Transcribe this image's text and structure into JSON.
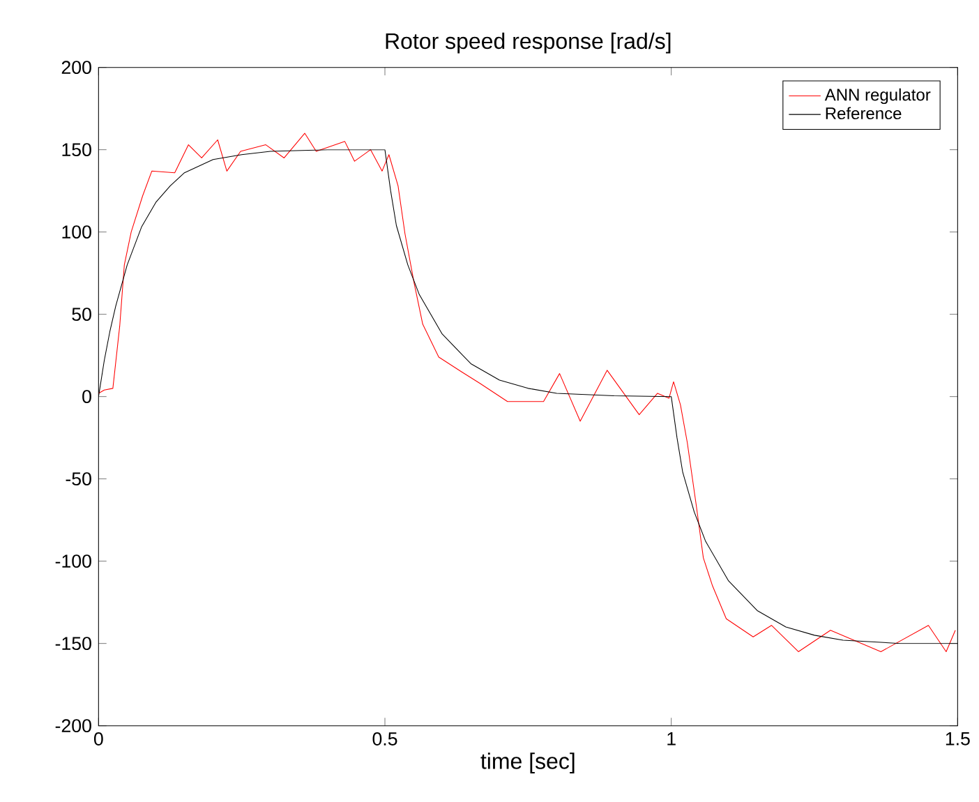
{
  "chart_data": {
    "type": "line",
    "title": "Rotor speed response [rad/s]",
    "xlabel": "time [sec]",
    "xlim": [
      0,
      1.5
    ],
    "xticks": [
      0,
      0.5,
      1,
      1.5
    ],
    "ylim": [
      -200,
      200
    ],
    "yticks": [
      -200,
      -150,
      -100,
      -50,
      0,
      50,
      100,
      150,
      200
    ],
    "grid": false,
    "legend": "top right",
    "marker": "none",
    "line_style": "solid",
    "series": [
      {
        "name": "ANN regulator",
        "color": "#ff0000",
        "x": [
          0,
          0.01,
          0.025,
          0.037,
          0.045,
          0.057,
          0.077,
          0.093,
          0.133,
          0.157,
          0.18,
          0.208,
          0.224,
          0.248,
          0.292,
          0.324,
          0.36,
          0.38,
          0.43,
          0.447,
          0.475,
          0.495,
          0.507,
          0.523,
          0.535,
          0.551,
          0.566,
          0.594,
          0.634,
          0.666,
          0.714,
          0.777,
          0.805,
          0.841,
          0.888,
          0.944,
          0.976,
          0.996,
          1.004,
          1.016,
          1.028,
          1.044,
          1.056,
          1.072,
          1.096,
          1.143,
          1.175,
          1.222,
          1.278,
          1.366,
          1.449,
          1.48,
          1.496
        ],
        "values": [
          2,
          4,
          5,
          43,
          80,
          100,
          122,
          137,
          136,
          153,
          145,
          156,
          137,
          149,
          153,
          145,
          160,
          149,
          155,
          143,
          150,
          137,
          147,
          128,
          99,
          69,
          44,
          24,
          15,
          8,
          -3,
          -3,
          14,
          -15,
          16,
          -11,
          2,
          -1,
          9,
          -5,
          -28,
          -67,
          -98,
          -115,
          -135,
          -146,
          -139,
          -155,
          -142,
          -155,
          -139,
          -155,
          -142
        ]
      },
      {
        "name": "Reference",
        "color": "#000000",
        "x": [
          0,
          0.01,
          0.02,
          0.03,
          0.05,
          0.075,
          0.1,
          0.125,
          0.15,
          0.2,
          0.25,
          0.3,
          0.4,
          0.5,
          0.51,
          0.52,
          0.54,
          0.56,
          0.6,
          0.65,
          0.7,
          0.75,
          0.8,
          0.9,
          1.0,
          1.01,
          1.02,
          1.04,
          1.06,
          1.1,
          1.15,
          1.2,
          1.25,
          1.3,
          1.4,
          1.5
        ],
        "values": [
          0,
          22,
          40,
          55,
          80,
          103,
          118,
          128,
          136,
          144,
          147,
          149,
          150,
          150,
          125,
          104,
          80,
          62,
          38,
          20,
          10,
          5,
          2,
          0.5,
          0,
          -25,
          -46,
          -70,
          -88,
          -112,
          -130,
          -140,
          -145,
          -148,
          -150,
          -150
        ]
      }
    ]
  }
}
